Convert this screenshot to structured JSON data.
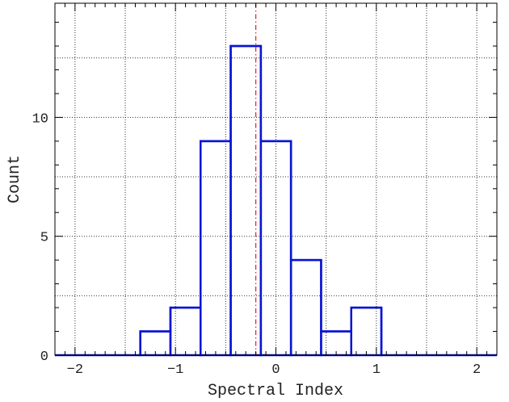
{
  "chart_data": {
    "type": "bar",
    "xlabel": "Spectral Index",
    "ylabel": "Count",
    "xlim": [
      -2.2,
      2.2
    ],
    "ylim": [
      0,
      14.8
    ],
    "xticks": [
      -2,
      -1,
      0,
      1,
      2
    ],
    "xtick_labels": [
      "−2",
      "−1",
      "0",
      "1",
      "2"
    ],
    "yticks": [
      0,
      5,
      10
    ],
    "ytick_labels": [
      "0",
      "5",
      "10"
    ],
    "x_gridlines": [
      -2,
      -1.5,
      -1,
      -0.5,
      0,
      0.5,
      1,
      1.5,
      2
    ],
    "y_gridlines": [
      2.5,
      5,
      7.5,
      10,
      12.5
    ],
    "grid": true,
    "bins": [
      {
        "x0": -2.2,
        "x1": -1.35,
        "count": 0
      },
      {
        "x0": -1.35,
        "x1": -1.05,
        "count": 1
      },
      {
        "x0": -1.05,
        "x1": -0.75,
        "count": 2
      },
      {
        "x0": -0.75,
        "x1": -0.45,
        "count": 9
      },
      {
        "x0": -0.45,
        "x1": -0.15,
        "count": 13
      },
      {
        "x0": -0.15,
        "x1": 0.15,
        "count": 9
      },
      {
        "x0": 0.15,
        "x1": 0.45,
        "count": 4
      },
      {
        "x0": 0.45,
        "x1": 0.75,
        "count": 1
      },
      {
        "x0": 0.75,
        "x1": 1.05,
        "count": 2
      },
      {
        "x0": 1.05,
        "x1": 2.2,
        "count": 0
      }
    ],
    "reference_line_x": -0.2,
    "colors": {
      "histogram": "#0a14d2",
      "reference_line": "#e02020",
      "grid": "#333333"
    }
  }
}
